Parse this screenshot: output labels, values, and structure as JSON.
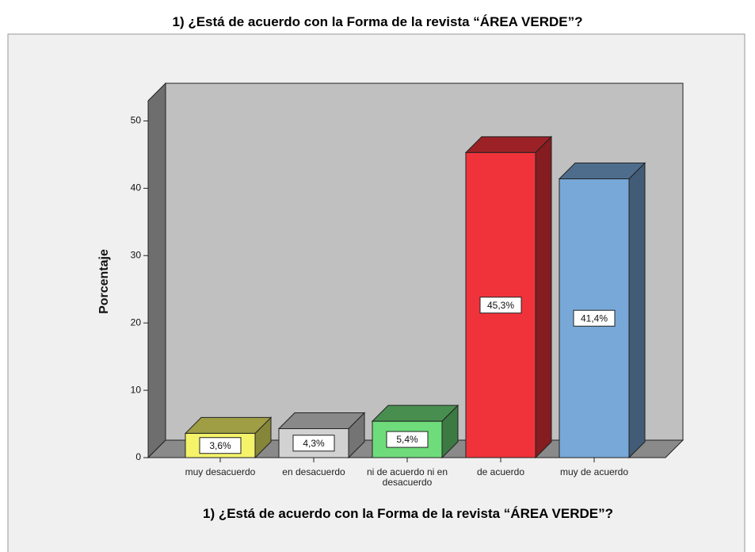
{
  "chart_data": {
    "type": "bar3d",
    "title": "1) ¿Está de acuerdo con la Forma de la revista  “ÁREA VERDE”?",
    "x_label": "1) ¿Está de acuerdo con la Forma de la revista  “ÁREA VERDE”?",
    "y_label": "Porcentaje",
    "categories": [
      "muy desacuerdo",
      "en desacuerdo",
      "ni de acuerdo ni en desacuerdo",
      "de acuerdo",
      "muy de acuerdo"
    ],
    "values": [
      3.6,
      4.3,
      5.4,
      45.3,
      41.4
    ],
    "value_labels": [
      "3,6%",
      "4,3%",
      "5,4%",
      "45,3%",
      "41,4%"
    ],
    "colors": [
      "#f4f36a",
      "#d2d2d2",
      "#6edc7a",
      "#f0333b",
      "#78a8d8"
    ],
    "ylim": [
      0,
      53
    ],
    "yticks": [
      0,
      10,
      20,
      30,
      40,
      50
    ]
  }
}
